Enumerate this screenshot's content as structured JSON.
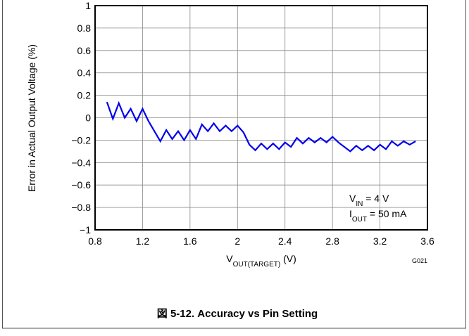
{
  "chart_data": {
    "type": "line",
    "y_label": "Error in Actual Output Voltage (%)",
    "x_label": {
      "main": "V",
      "sub": "OUT(TARGET)",
      "rest": " (V)"
    },
    "annotations": [
      {
        "main": "V",
        "sub": "IN",
        "rest": " = 4 V"
      },
      {
        "main": "I",
        "sub": "OUT",
        "rest": " = 50 mA"
      }
    ],
    "figure_id": "G021",
    "caption": "図 5-12. Accuracy vs Pin Setting",
    "x": [
      0.9,
      0.95,
      1.0,
      1.05,
      1.1,
      1.15,
      1.2,
      1.25,
      1.3,
      1.35,
      1.4,
      1.45,
      1.5,
      1.55,
      1.6,
      1.65,
      1.7,
      1.75,
      1.8,
      1.85,
      1.9,
      1.95,
      2.0,
      2.05,
      2.1,
      2.15,
      2.2,
      2.25,
      2.3,
      2.35,
      2.4,
      2.45,
      2.5,
      2.55,
      2.6,
      2.65,
      2.7,
      2.75,
      2.8,
      2.85,
      2.9,
      2.95,
      3.0,
      3.05,
      3.1,
      3.15,
      3.2,
      3.25,
      3.3,
      3.35,
      3.4,
      3.45,
      3.5
    ],
    "series": [
      {
        "color": "#0000ee",
        "values": [
          0.14,
          -0.01,
          0.13,
          0.0,
          0.08,
          -0.03,
          0.08,
          -0.03,
          -0.12,
          -0.21,
          -0.11,
          -0.19,
          -0.12,
          -0.2,
          -0.11,
          -0.19,
          -0.06,
          -0.12,
          -0.05,
          -0.12,
          -0.07,
          -0.12,
          -0.07,
          -0.13,
          -0.24,
          -0.29,
          -0.23,
          -0.28,
          -0.23,
          -0.28,
          -0.22,
          -0.26,
          -0.18,
          -0.23,
          -0.18,
          -0.22,
          -0.18,
          -0.22,
          -0.17,
          -0.22,
          -0.26,
          -0.3,
          -0.25,
          -0.29,
          -0.25,
          -0.29,
          -0.24,
          -0.28,
          -0.21,
          -0.25,
          -0.21,
          -0.24,
          -0.21
        ]
      }
    ],
    "xlim": [
      0.8,
      3.6
    ],
    "xticks": [
      0.8,
      1.2,
      1.6,
      2,
      2.4,
      2.8,
      3.2,
      3.6
    ],
    "ylim": [
      -1,
      1
    ],
    "yticks": [
      {
        "value": -1,
        "label": "−1"
      },
      {
        "value": -0.8,
        "label": "−0.8"
      },
      {
        "value": -0.6,
        "label": "−0.6"
      },
      {
        "value": -0.4,
        "label": "−0.4"
      },
      {
        "value": -0.2,
        "label": "−0.2"
      },
      0,
      0.2,
      0.4,
      0.6,
      0.8,
      1
    ],
    "grid": true
  }
}
